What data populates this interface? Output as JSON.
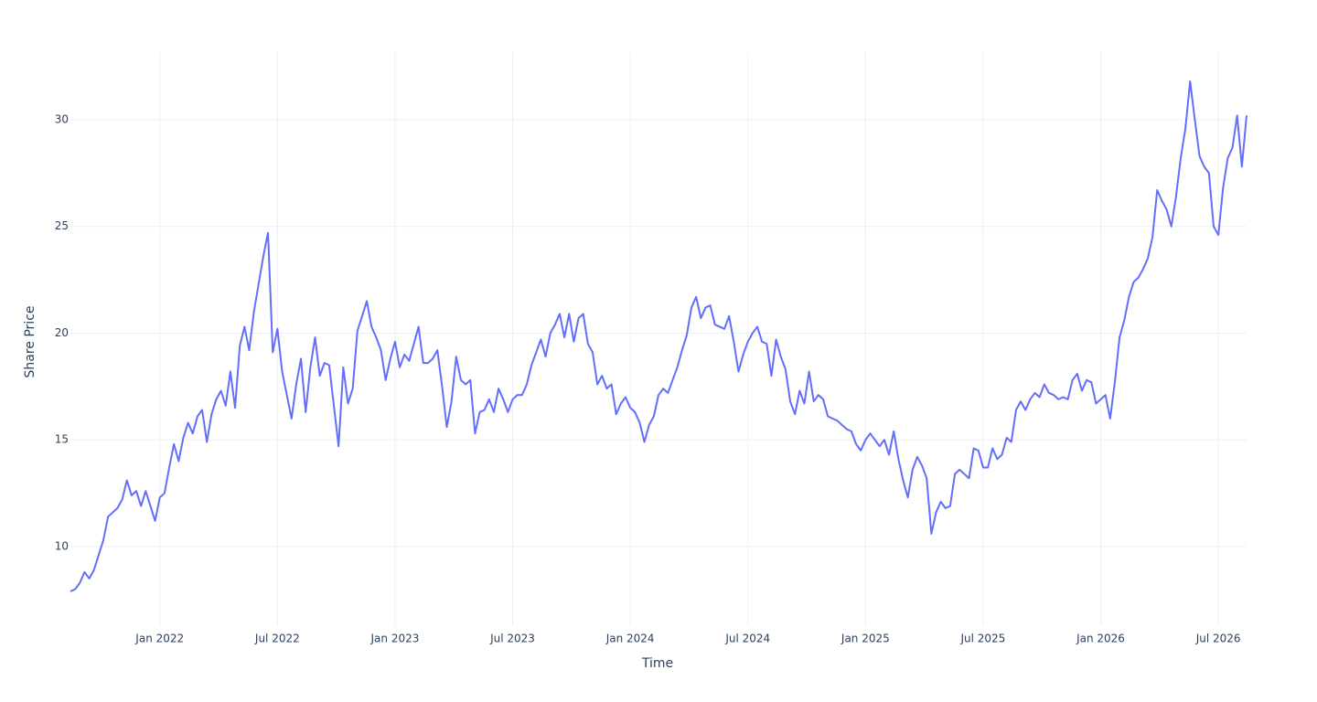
{
  "chart_data": {
    "type": "line",
    "xlabel": "Time",
    "ylabel": "Share Price",
    "color": "#636efa",
    "grid": true,
    "xlim": [
      2021.62,
      2026.62
    ],
    "ylim": [
      6.27,
      33.17
    ],
    "xticks": [
      {
        "value": 2022,
        "label": "Jan 2022"
      },
      {
        "value": 2022.5,
        "label": "Jul 2022"
      },
      {
        "value": 2023,
        "label": "Jan 2023"
      },
      {
        "value": 2023.5,
        "label": "Jul 2023"
      },
      {
        "value": 2024,
        "label": "Jan 2024"
      },
      {
        "value": 2024.5,
        "label": "Jul 2024"
      },
      {
        "value": 2025,
        "label": "Jan 2025"
      },
      {
        "value": 2025.5,
        "label": "Jul 2025"
      },
      {
        "value": 2026,
        "label": "Jan 2026"
      },
      {
        "value": 2026.5,
        "label": "Jul 2026"
      }
    ],
    "yticks": [
      10,
      15,
      20,
      25,
      30
    ],
    "x": [
      2021.62,
      2021.64,
      2021.66,
      2021.68,
      2021.7,
      2021.72,
      2021.74,
      2021.76,
      2021.78,
      2021.8,
      2021.82,
      2021.84,
      2021.86,
      2021.88,
      2021.9,
      2021.92,
      2021.94,
      2021.96,
      2021.98,
      2022,
      2022.02,
      2022.04,
      2022.06,
      2022.08,
      2022.1,
      2022.12,
      2022.14,
      2022.16,
      2022.18,
      2022.2,
      2022.22,
      2022.24,
      2022.26,
      2022.28,
      2022.3,
      2022.32,
      2022.34,
      2022.36,
      2022.38,
      2022.4,
      2022.42,
      2022.44,
      2022.46,
      2022.48,
      2022.5,
      2022.52,
      2022.54,
      2022.56,
      2022.58,
      2022.6,
      2022.62,
      2022.64,
      2022.66,
      2022.68,
      2022.7,
      2022.72,
      2022.74,
      2022.76,
      2022.78,
      2022.8,
      2022.82,
      2022.84,
      2022.86,
      2022.88,
      2022.9,
      2022.92,
      2022.94,
      2022.96,
      2022.98,
      2023,
      2023.02,
      2023.04,
      2023.06,
      2023.08,
      2023.1,
      2023.12,
      2023.14,
      2023.16,
      2023.18,
      2023.2,
      2023.22,
      2023.24,
      2023.26,
      2023.28,
      2023.3,
      2023.32,
      2023.34,
      2023.36,
      2023.38,
      2023.4,
      2023.42,
      2023.44,
      2023.46,
      2023.48,
      2023.5,
      2023.52,
      2023.54,
      2023.56,
      2023.58,
      2023.6,
      2023.62,
      2023.64,
      2023.66,
      2023.68,
      2023.7,
      2023.72,
      2023.74,
      2023.76,
      2023.78,
      2023.8,
      2023.82,
      2023.84,
      2023.86,
      2023.88,
      2023.9,
      2023.92,
      2023.94,
      2023.96,
      2023.98,
      2024,
      2024.02,
      2024.04,
      2024.06,
      2024.08,
      2024.1,
      2024.12,
      2024.14,
      2024.16,
      2024.18,
      2024.2,
      2024.22,
      2024.24,
      2024.26,
      2024.28,
      2024.3,
      2024.32,
      2024.34,
      2024.36,
      2024.38,
      2024.4,
      2024.42,
      2024.44,
      2024.46,
      2024.48,
      2024.5,
      2024.52,
      2024.54,
      2024.56,
      2024.58,
      2024.6,
      2024.62,
      2024.64,
      2024.66,
      2024.68,
      2024.7,
      2024.72,
      2024.74,
      2024.76,
      2024.78,
      2024.8,
      2024.82,
      2024.84,
      2024.86,
      2024.88,
      2024.9,
      2024.92,
      2024.94,
      2024.96,
      2024.98,
      2025,
      2025.02,
      2025.04,
      2025.06,
      2025.08,
      2025.1,
      2025.12,
      2025.14,
      2025.16,
      2025.18,
      2025.2,
      2025.22,
      2025.24,
      2025.26,
      2025.28,
      2025.3,
      2025.32,
      2025.34,
      2025.36,
      2025.38,
      2025.4,
      2025.42,
      2025.44,
      2025.46,
      2025.48,
      2025.5,
      2025.52,
      2025.54,
      2025.56,
      2025.58,
      2025.6,
      2025.62,
      2025.64,
      2025.66,
      2025.68,
      2025.7,
      2025.72,
      2025.74,
      2025.76,
      2025.78,
      2025.8,
      2025.82,
      2025.84,
      2025.86,
      2025.88,
      2025.9,
      2025.92,
      2025.94,
      2025.96,
      2025.98,
      2026,
      2026.02,
      2026.04,
      2026.06,
      2026.08,
      2026.1,
      2026.12,
      2026.14,
      2026.16,
      2026.18,
      2026.2,
      2026.22,
      2026.24,
      2026.26,
      2026.28,
      2026.3,
      2026.32,
      2026.34,
      2026.36,
      2026.38,
      2026.4,
      2026.42,
      2026.44,
      2026.46,
      2026.48,
      2026.5,
      2026.52,
      2026.54,
      2026.56,
      2026.58,
      2026.6,
      2026.62
    ],
    "values": [
      7.9,
      8.0,
      8.3,
      8.8,
      8.5,
      8.9,
      9.6,
      10.3,
      11.4,
      11.6,
      11.8,
      12.2,
      13.1,
      12.4,
      12.6,
      11.9,
      12.6,
      11.9,
      11.2,
      12.3,
      12.5,
      13.7,
      14.8,
      14.0,
      15.1,
      15.8,
      15.3,
      16.1,
      16.4,
      14.9,
      16.2,
      16.9,
      17.3,
      16.6,
      18.2,
      16.5,
      19.4,
      20.3,
      19.2,
      21.0,
      22.3,
      23.6,
      24.7,
      19.1,
      20.2,
      18.2,
      17.1,
      16.0,
      17.6,
      18.8,
      16.3,
      18.4,
      19.8,
      18.0,
      18.6,
      18.5,
      16.6,
      14.7,
      18.4,
      16.7,
      17.4,
      20.1,
      20.8,
      21.5,
      20.3,
      19.8,
      19.2,
      17.8,
      18.8,
      19.6,
      18.4,
      19.0,
      18.7,
      19.5,
      20.3,
      18.6,
      18.6,
      18.8,
      19.2,
      17.5,
      15.6,
      16.8,
      18.9,
      17.8,
      17.6,
      17.8,
      15.3,
      16.3,
      16.4,
      16.9,
      16.3,
      17.4,
      16.9,
      16.3,
      16.9,
      17.1,
      17.1,
      17.6,
      18.5,
      19.1,
      19.7,
      18.9,
      20.0,
      20.4,
      20.9,
      19.8,
      20.9,
      19.6,
      20.7,
      20.9,
      19.5,
      19.1,
      17.6,
      18.0,
      17.4,
      17.6,
      16.2,
      16.7,
      17.0,
      16.5,
      16.3,
      15.8,
      14.9,
      15.7,
      16.1,
      17.1,
      17.4,
      17.2,
      17.8,
      18.4,
      19.2,
      19.9,
      21.2,
      21.7,
      20.7,
      21.2,
      21.3,
      20.4,
      20.3,
      20.2,
      20.8,
      19.6,
      18.2,
      19.0,
      19.6,
      20.0,
      20.3,
      19.6,
      19.5,
      18.0,
      19.7,
      18.9,
      18.3,
      16.8,
      16.2,
      17.3,
      16.7,
      18.2,
      16.8,
      17.1,
      16.9,
      16.1,
      16.0,
      15.9,
      15.7,
      15.5,
      15.4,
      14.8,
      14.5,
      15.0,
      15.3,
      15.0,
      14.7,
      15.0,
      14.3,
      15.4,
      14.1,
      13.1,
      12.3,
      13.6,
      14.2,
      13.8,
      13.2,
      10.6,
      11.6,
      12.1,
      11.8,
      11.9,
      13.4,
      13.6,
      13.4,
      13.2,
      14.6,
      14.5,
      13.7,
      13.7,
      14.6,
      14.1,
      14.3,
      15.1,
      14.9,
      16.4,
      16.8,
      16.4,
      16.9,
      17.2,
      17.0,
      17.6,
      17.2,
      17.1,
      16.9,
      17.0,
      16.9,
      17.8,
      18.1,
      17.3,
      17.8,
      17.7,
      16.7,
      16.9,
      17.1,
      16.0,
      17.7,
      19.8,
      20.6,
      21.7,
      22.4,
      22.6,
      23.0,
      23.5,
      24.5,
      26.7,
      26.2,
      25.8,
      25.0,
      26.4,
      28.2,
      29.6,
      31.8,
      30.0,
      28.3,
      27.8,
      27.5,
      25.0,
      24.6,
      26.8,
      28.2,
      28.7,
      30.2,
      27.8,
      30.2
    ]
  }
}
